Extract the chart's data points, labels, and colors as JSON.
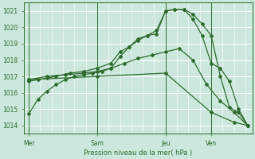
{
  "xlabel": "Pression niveau de la mer( hPa )",
  "ylim": [
    1013.5,
    1021.5
  ],
  "yticks": [
    1014,
    1015,
    1016,
    1017,
    1018,
    1019,
    1020,
    1021
  ],
  "bg_color": "#cce8dc",
  "grid_color": "#ffffff",
  "line_color": "#2d6b2d",
  "day_labels": [
    "Mer",
    "Sam",
    "Jeu",
    "Ven"
  ],
  "day_positions": [
    0,
    30,
    60,
    80
  ],
  "xlim": [
    -2,
    98
  ],
  "lines": [
    {
      "x": [
        0,
        4,
        8,
        12,
        16,
        20,
        24,
        28,
        32,
        36,
        40,
        44,
        48,
        52,
        56,
        60,
        64,
        68,
        72,
        76,
        80,
        84,
        88,
        92,
        96
      ],
      "y": [
        1014.7,
        1015.6,
        1016.1,
        1016.5,
        1016.8,
        1017.0,
        1017.1,
        1017.2,
        1017.3,
        1017.5,
        1018.2,
        1018.8,
        1019.2,
        1019.5,
        1019.8,
        1021.0,
        1021.1,
        1021.1,
        1020.8,
        1020.2,
        1019.5,
        1017.0,
        1015.1,
        1014.8,
        1014.0
      ]
    },
    {
      "x": [
        0,
        4,
        8,
        12,
        18,
        24,
        30,
        36,
        40,
        44,
        48,
        52,
        56,
        60,
        64,
        68,
        72,
        76,
        80,
        84,
        88,
        92,
        96
      ],
      "y": [
        1016.7,
        1016.8,
        1016.9,
        1017.0,
        1017.2,
        1017.3,
        1017.5,
        1017.8,
        1018.5,
        1018.8,
        1019.3,
        1019.5,
        1019.6,
        1021.0,
        1021.1,
        1021.1,
        1020.5,
        1019.5,
        1017.8,
        1017.5,
        1016.7,
        1015.0,
        1014.0
      ]
    },
    {
      "x": [
        0,
        8,
        16,
        24,
        30,
        36,
        42,
        48,
        54,
        60,
        66,
        72,
        78,
        84,
        90,
        96
      ],
      "y": [
        1016.8,
        1017.0,
        1017.1,
        1017.2,
        1017.3,
        1017.5,
        1017.8,
        1018.1,
        1018.3,
        1018.5,
        1018.7,
        1018.0,
        1016.5,
        1015.5,
        1014.8,
        1014.0
      ]
    },
    {
      "x": [
        0,
        30,
        60,
        80,
        90,
        96
      ],
      "y": [
        1016.8,
        1017.0,
        1017.2,
        1014.8,
        1014.2,
        1014.0
      ]
    }
  ]
}
